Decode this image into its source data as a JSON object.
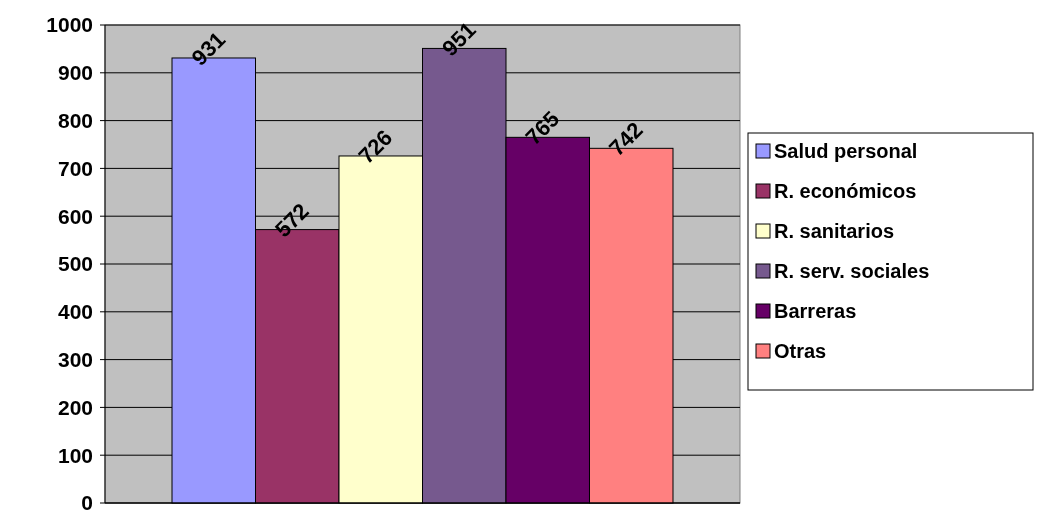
{
  "chart_data": {
    "type": "bar",
    "categories": [
      null
    ],
    "series": [
      {
        "name": "Salud personal",
        "color": "#9999ff",
        "values": [
          931
        ]
      },
      {
        "name": "R. económicos",
        "color": "#993366",
        "values": [
          572
        ]
      },
      {
        "name": "R. sanitarios",
        "color": "#ffffcc",
        "values": [
          726
        ]
      },
      {
        "name": "R. serv. sociales",
        "color": "#76598e",
        "values": [
          951
        ]
      },
      {
        "name": "Barreras",
        "color": "#660066",
        "values": [
          765
        ]
      },
      {
        "name": "Otras",
        "color": "#ff8080",
        "values": [
          742
        ]
      }
    ],
    "ylim": [
      0,
      1000
    ],
    "yticks": [
      0,
      100,
      200,
      300,
      400,
      500,
      600,
      700,
      800,
      900,
      1000
    ],
    "grid": "y",
    "legend": "right",
    "data_labels": true
  }
}
